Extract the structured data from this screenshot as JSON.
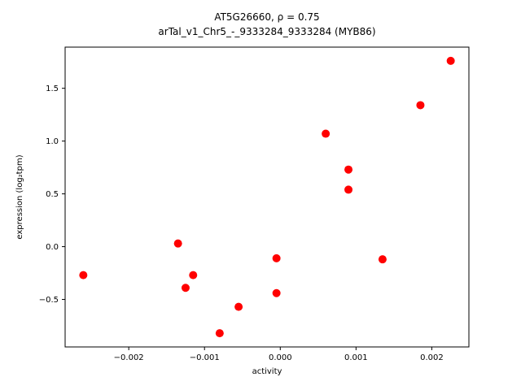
{
  "figure": {
    "title_line1": "AT5G26660, ρ = 0.75",
    "title_line2": "arTal_v1_Chr5_-_9333284_9333284 (MYB86)"
  },
  "chart_data": {
    "type": "scatter",
    "title": "AT5G26660, ρ = 0.75\narTal_v1_Chr5_-_9333284_9333284 (MYB86)",
    "xlabel": "activity",
    "ylabel": "expression (log₂tpm)",
    "marker_color": "#ff0000",
    "grid": false,
    "xlim": [
      -0.00284,
      0.00249
    ],
    "ylim": [
      -0.95,
      1.89
    ],
    "xticks": [
      -0.002,
      -0.001,
      0.0,
      0.001,
      0.002
    ],
    "xtick_labels": [
      "−0.002",
      "−0.001",
      "0.000",
      "0.001",
      "0.002"
    ],
    "yticks": [
      -0.5,
      0.0,
      0.5,
      1.0,
      1.5
    ],
    "ytick_labels": [
      "−0.5",
      "0.0",
      "0.5",
      "1.0",
      "1.5"
    ],
    "points": [
      {
        "x": -0.0026,
        "y": -0.27
      },
      {
        "x": -0.00135,
        "y": 0.03
      },
      {
        "x": -0.00125,
        "y": -0.39
      },
      {
        "x": -0.00115,
        "y": -0.27
      },
      {
        "x": -0.0008,
        "y": -0.82
      },
      {
        "x": -0.00055,
        "y": -0.57
      },
      {
        "x": -5e-05,
        "y": -0.11
      },
      {
        "x": -5e-05,
        "y": -0.44
      },
      {
        "x": 0.0006,
        "y": 1.07
      },
      {
        "x": 0.0009,
        "y": 0.73
      },
      {
        "x": 0.0009,
        "y": 0.54
      },
      {
        "x": 0.00135,
        "y": -0.12
      },
      {
        "x": 0.00185,
        "y": 1.34
      },
      {
        "x": 0.00225,
        "y": 1.76
      }
    ]
  }
}
